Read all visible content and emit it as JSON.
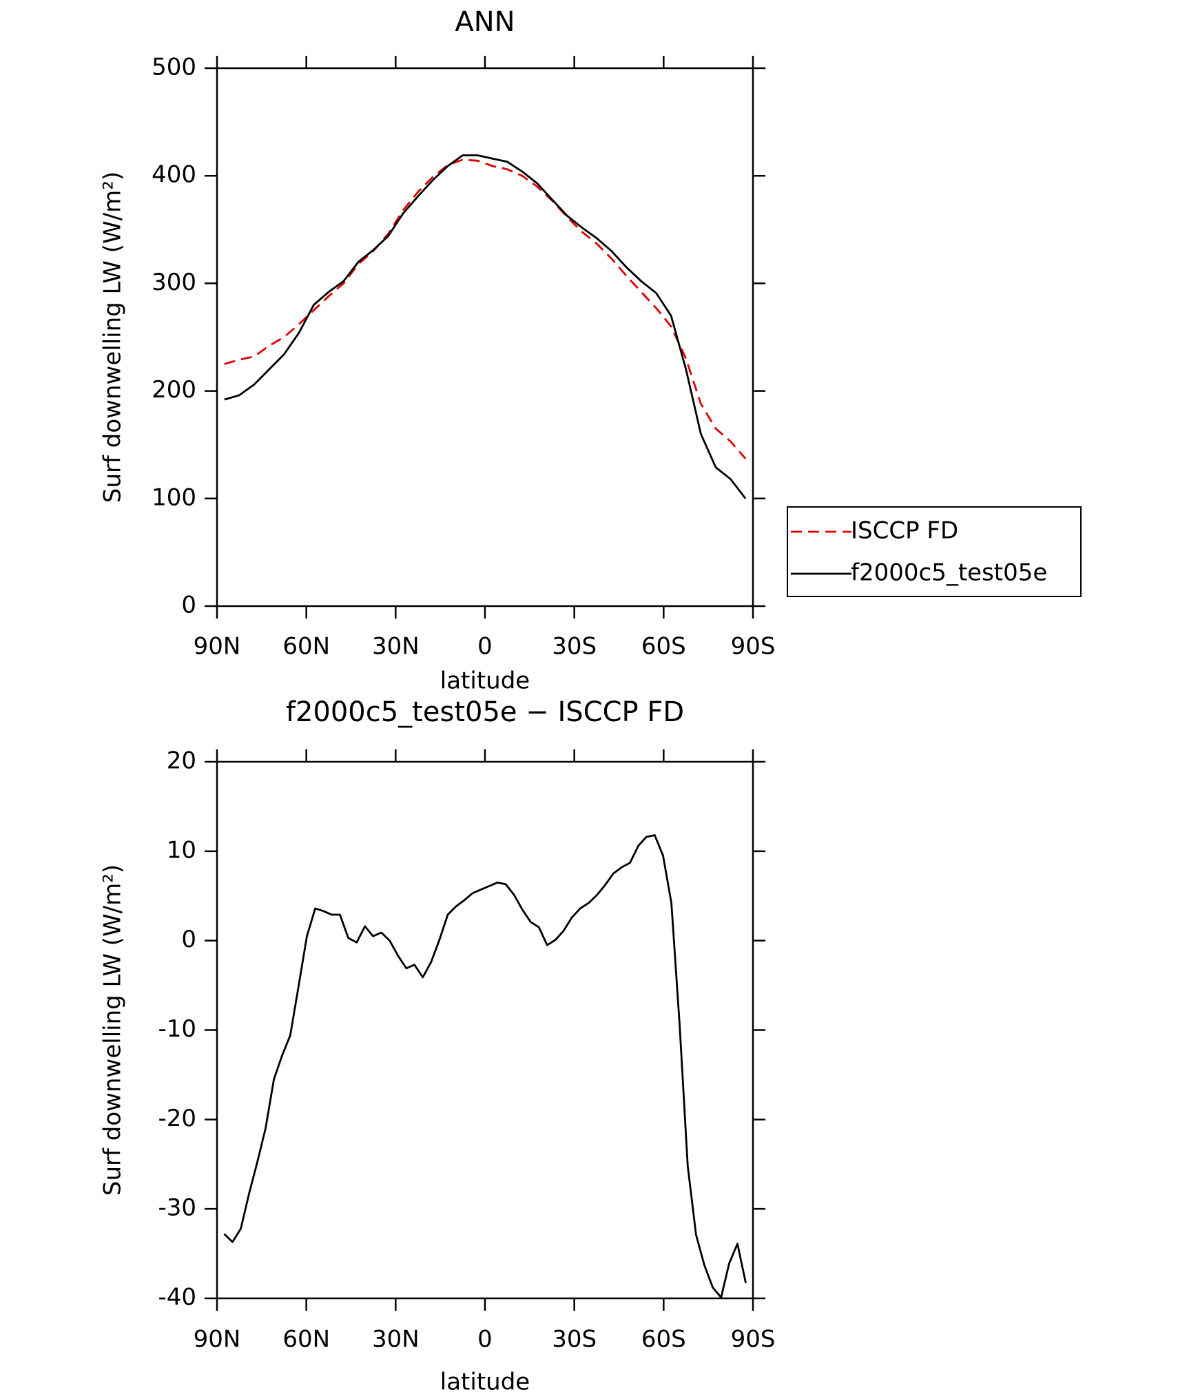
{
  "chart_data": [
    {
      "type": "line",
      "title": "ANN",
      "xlabel": "latitude",
      "ylabel": "Surf downwelling LW (W/m²)",
      "x": [
        87.5,
        82.5,
        77.5,
        72.5,
        67.5,
        62.5,
        57.5,
        52.5,
        47.5,
        42.5,
        37.5,
        32.5,
        27.5,
        22.5,
        17.5,
        12.5,
        7.5,
        2.5,
        -2.5,
        -7.5,
        -12.5,
        -17.5,
        -22.5,
        -27.5,
        -32.5,
        -37.5,
        -42.5,
        -47.5,
        -52.5,
        -57.5,
        -62.5,
        -67.5,
        -72.5,
        -77.5,
        -82.5,
        -87.5
      ],
      "series": [
        {
          "name": "ISCCP FD",
          "color": "#e00000",
          "dash": true,
          "values": [
            225,
            229,
            232,
            242,
            250,
            262,
            275,
            288,
            300,
            318,
            330,
            346,
            368,
            385,
            399,
            410,
            415,
            414,
            409,
            406,
            400,
            390,
            377,
            362,
            348,
            337,
            323,
            307,
            292,
            277,
            260,
            230,
            188,
            165,
            153,
            137
          ]
        },
        {
          "name": "f2000c5_test05e",
          "color": "#000000",
          "dash": false,
          "values": [
            192,
            196,
            206,
            220,
            234,
            254,
            280,
            292,
            302,
            320,
            331,
            344,
            365,
            381,
            396,
            409,
            419,
            419,
            416,
            413,
            404,
            393,
            378,
            363,
            352,
            342,
            330,
            315,
            302,
            291,
            270,
            220,
            160,
            129,
            118,
            100
          ]
        }
      ],
      "xlim": [
        90,
        -90
      ],
      "xticks": [
        {
          "value": 90,
          "label": "90N"
        },
        {
          "value": 60,
          "label": "60N"
        },
        {
          "value": 30,
          "label": "30N"
        },
        0,
        {
          "value": -30,
          "label": "30S"
        },
        {
          "value": -60,
          "label": "60S"
        },
        {
          "value": -90,
          "label": "90S"
        }
      ],
      "ylim": [
        0,
        500
      ],
      "yticks": [
        0,
        100,
        200,
        300,
        400,
        500
      ],
      "legend": "right"
    },
    {
      "type": "line",
      "title": "f2000c5_test05e − ISCCP FD",
      "xlabel": "latitude",
      "ylabel": "Surf downwelling LW (W/m²)",
      "x": [
        87.6,
        84.8,
        82.0,
        79.3,
        76.5,
        73.7,
        70.9,
        68.1,
        65.4,
        62.6,
        59.8,
        57.0,
        54.2,
        51.5,
        48.7,
        45.9,
        43.1,
        40.3,
        37.6,
        34.8,
        32.0,
        29.2,
        26.4,
        23.7,
        20.9,
        18.1,
        15.3,
        12.5,
        9.8,
        7.0,
        4.2,
        1.4,
        -1.4,
        -4.2,
        -7.0,
        -9.8,
        -12.5,
        -15.3,
        -18.1,
        -20.9,
        -23.7,
        -26.4,
        -29.2,
        -32.0,
        -34.8,
        -37.6,
        -40.3,
        -43.1,
        -45.9,
        -48.7,
        -51.5,
        -54.2,
        -57.0,
        -59.8,
        -62.6,
        -65.4,
        -68.1,
        -70.9,
        -73.7,
        -76.5,
        -79.3,
        -82.0,
        -84.8,
        -87.6
      ],
      "series": [
        {
          "color": "#000000",
          "dash": false,
          "values": [
            -32.8,
            -33.7,
            -32.2,
            -28.4,
            -24.8,
            -21,
            -15.5,
            -12.8,
            -10.6,
            -5.1,
            0.5,
            3.6,
            3.3,
            2.9,
            2.9,
            0.3,
            -0.2,
            1.6,
            0.5,
            0.9,
            0,
            -1.7,
            -3.1,
            -2.7,
            -4.1,
            -2.4,
            0.1,
            2.9,
            3.8,
            4.5,
            5.3,
            5.7,
            6.1,
            6.5,
            6.3,
            5.1,
            3.5,
            2.1,
            1.5,
            -0.5,
            0.1,
            1.1,
            2.6,
            3.6,
            4.2,
            5.1,
            6.2,
            7.5,
            8.2,
            8.7,
            10.6,
            11.6,
            11.8,
            9.5,
            4.2,
            -9.6,
            -25.2,
            -32.9,
            -36.3,
            -38.8,
            -39.9,
            -36.1,
            -33.9,
            -38.3
          ]
        }
      ],
      "xlim": [
        90,
        -90
      ],
      "xticks": [
        {
          "value": 90,
          "label": "90N"
        },
        {
          "value": 60,
          "label": "60N"
        },
        {
          "value": 30,
          "label": "30N"
        },
        0,
        {
          "value": -30,
          "label": "30S"
        },
        {
          "value": -60,
          "label": "60S"
        },
        {
          "value": -90,
          "label": "90S"
        }
      ],
      "ylim": [
        -40,
        20
      ],
      "yticks": [
        -40,
        -30,
        -20,
        -10,
        0,
        10,
        20
      ]
    }
  ]
}
